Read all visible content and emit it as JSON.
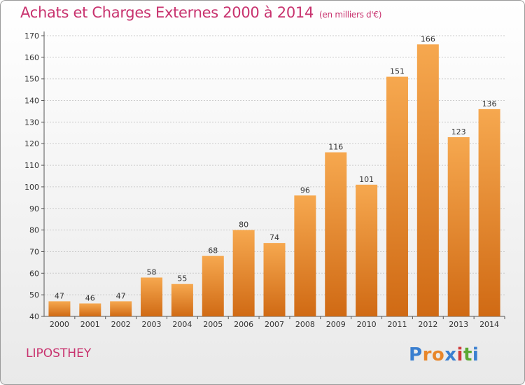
{
  "header": {
    "title": "Achats et Charges Externes 2000 à 2014",
    "unit": "(en milliers d'€)"
  },
  "footer": {
    "town": "LIPOSTHEY",
    "logo": [
      "P",
      "r",
      "o",
      "x",
      "i",
      "t",
      "i"
    ]
  },
  "colors": {
    "title": "#c8326e",
    "bar_light": "#f6a84f",
    "bar_dark": "#d06a14",
    "grid": "#cccccc",
    "logo": [
      "#3a7fd0",
      "#e8862a",
      "#e8862a",
      "#3a7fd0",
      "#d03a3a",
      "#5aa832",
      "#3a7fd0"
    ]
  },
  "chart_data": {
    "type": "bar",
    "title": "Achats et Charges Externes 2000 à 2014",
    "subtitle": "(en milliers d'€)",
    "categories": [
      "2000",
      "2001",
      "2002",
      "2003",
      "2004",
      "2005",
      "2006",
      "2007",
      "2008",
      "2009",
      "2010",
      "2011",
      "2012",
      "2013",
      "2014"
    ],
    "values": [
      47,
      46,
      47,
      58,
      55,
      68,
      80,
      74,
      96,
      116,
      101,
      151,
      166,
      123,
      136
    ],
    "ylim": [
      40,
      170
    ],
    "yticks": [
      40,
      50,
      60,
      70,
      80,
      90,
      100,
      110,
      120,
      130,
      140,
      150,
      160,
      170
    ],
    "grid": true,
    "xlabel": "",
    "ylabel": ""
  }
}
